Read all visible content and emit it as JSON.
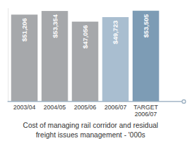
{
  "chart_data": {
    "type": "bar",
    "title": "Cost of managing rail corridor and residual freight issues management - '000s",
    "categories": [
      "2003/04",
      "2004/05",
      "2005/06",
      "2006/07",
      "TARGET 2006/07"
    ],
    "values": [
      51206,
      53354,
      47056,
      49723,
      53505
    ],
    "value_labels": [
      "$51,206",
      "$53,354",
      "$47,056",
      "$49,723",
      "$53,505"
    ],
    "colors": [
      "#a6a8ab",
      "#a6a8ab",
      "#a6a8ab",
      "#a9bed0",
      "#7d9cb5"
    ],
    "ylim": [
      0,
      55000
    ],
    "grid": false,
    "data_labels": true,
    "tick_labels": "x"
  }
}
